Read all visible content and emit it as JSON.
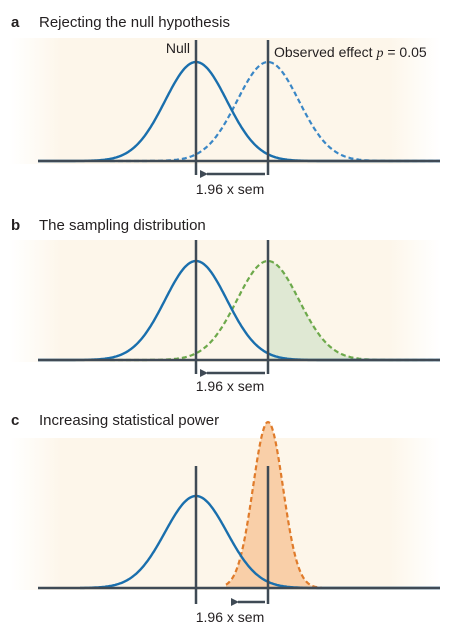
{
  "panels": [
    {
      "letter": "a",
      "title": "Rejecting the null hypothesis",
      "null_label": "Null",
      "observed_label": "Observed effect",
      "p_symbol": "p",
      "p_value": "= 0.05",
      "arrow_label": "1.96 x sem"
    },
    {
      "letter": "b",
      "title": "The sampling distribution",
      "arrow_label": "1.96 x sem"
    },
    {
      "letter": "c",
      "title": "Increasing statistical power",
      "arrow_label": "1.96 x sem"
    }
  ],
  "colors": {
    "background": "#fdf6ea",
    "null_curve": "#1a6fad",
    "observed_dashed_blue": "#3a87c6",
    "sampling_dashed_green": "#6da94b",
    "sampling_fill": "#dfe8d3",
    "power_dashed_orange": "#e07b2a",
    "power_fill": "#f9cfa8",
    "axis": "#3f4a55"
  }
}
